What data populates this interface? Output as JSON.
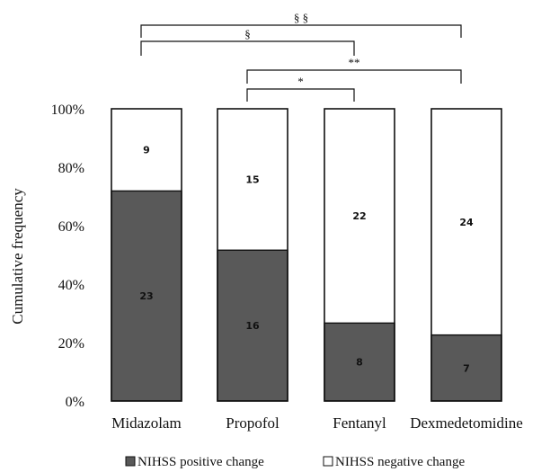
{
  "chart_data": {
    "type": "bar",
    "stacked": true,
    "normalized": true,
    "ylabel": "Cumulative frequency",
    "xlabel": "",
    "ylim": [
      0,
      100
    ],
    "yticks": [
      "0%",
      "20%",
      "40%",
      "60%",
      "80%",
      "100%"
    ],
    "yticks_values": [
      0,
      20,
      40,
      60,
      80,
      100
    ],
    "categories": [
      "Midazolam",
      "Propofol",
      "Fentanyl",
      "Dexmedetomidine"
    ],
    "series": [
      {
        "name": "NIHSS positive change",
        "values": [
          23,
          16,
          8,
          7
        ],
        "color": "#595959"
      },
      {
        "name": "NIHSS negative change",
        "values": [
          9,
          15,
          22,
          24
        ],
        "color": "#ffffff"
      }
    ],
    "legend": {
      "placement": "bottom"
    },
    "grid": false,
    "significance": [
      {
        "from": 0,
        "to": 3,
        "label": "§ §"
      },
      {
        "from": 0,
        "to": 2,
        "label": "§"
      },
      {
        "from": 1,
        "to": 3,
        "label": "**"
      },
      {
        "from": 1,
        "to": 2,
        "label": "*"
      }
    ]
  }
}
